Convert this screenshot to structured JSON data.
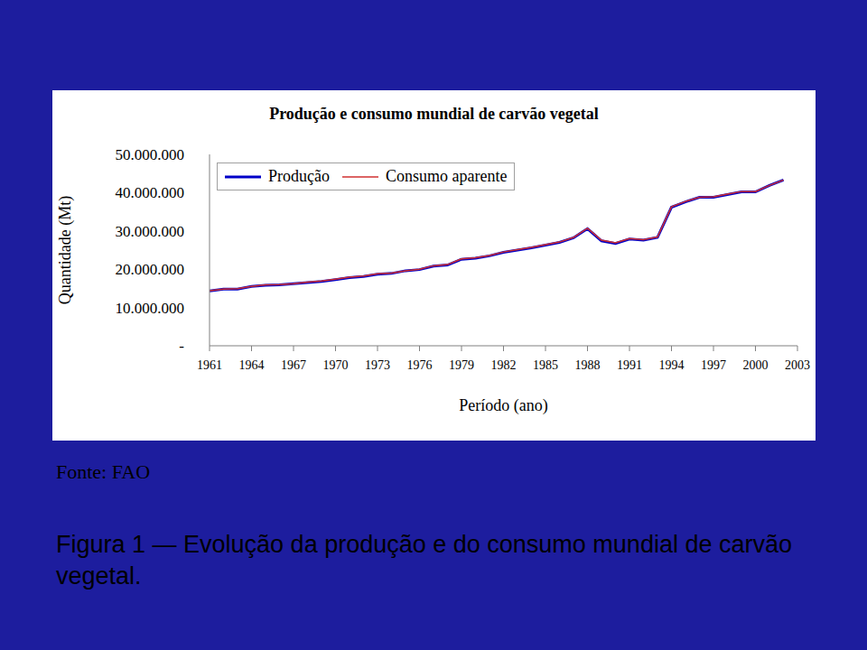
{
  "chart_data": {
    "type": "line",
    "title": "Produção e consumo mundial de carvão vegetal",
    "x_label": "Período (ano)",
    "y_label": "Quantidade (Mt)",
    "source": "Fonte: FAO",
    "caption": "Figura 1 — Evolução da produção e do consumo mundial de carvão vegetal.",
    "x": [
      1961,
      1962,
      1963,
      1964,
      1965,
      1966,
      1967,
      1968,
      1969,
      1970,
      1971,
      1972,
      1973,
      1974,
      1975,
      1976,
      1977,
      1978,
      1979,
      1980,
      1981,
      1982,
      1983,
      1984,
      1985,
      1986,
      1987,
      1988,
      1989,
      1990,
      1991,
      1992,
      1993,
      1994,
      1995,
      1996,
      1997,
      1998,
      1999,
      2000,
      2001,
      2002
    ],
    "series": [
      {
        "name": "Produção",
        "color": "#0000c8",
        "values": [
          14300000,
          14800000,
          14800000,
          15500000,
          15800000,
          15900000,
          16200000,
          16500000,
          16800000,
          17300000,
          17800000,
          18100000,
          18700000,
          18900000,
          19600000,
          19900000,
          20800000,
          21100000,
          22600000,
          22900000,
          23500000,
          24400000,
          25000000,
          25600000,
          26300000,
          27000000,
          28200000,
          30600000,
          27400000,
          26700000,
          27900000,
          27600000,
          28300000,
          36200000,
          37600000,
          38800000,
          38800000,
          39500000,
          40200000,
          40200000,
          41900000,
          43300000
        ]
      },
      {
        "name": "Consumo aparente",
        "color": "#d03030",
        "values": [
          14400000,
          14800000,
          14900000,
          15500000,
          15900000,
          16000000,
          16200000,
          16600000,
          16900000,
          17400000,
          17900000,
          18200000,
          18800000,
          19000000,
          19600000,
          20000000,
          20900000,
          21200000,
          22700000,
          23000000,
          23600000,
          24500000,
          25100000,
          25700000,
          26400000,
          27100000,
          28300000,
          30700000,
          27600000,
          26900000,
          28000000,
          27700000,
          28400000,
          36300000,
          37700000,
          38800000,
          38900000,
          39600000,
          40300000,
          40300000,
          41900000,
          43300000
        ]
      }
    ],
    "xlim": [
      1961,
      2003
    ],
    "xticks": [
      1961,
      1964,
      1967,
      1970,
      1973,
      1976,
      1979,
      1982,
      1985,
      1988,
      1991,
      1994,
      1997,
      2000,
      2003
    ],
    "ylim": [
      0,
      50000000
    ],
    "yticks": [
      {
        "value": 0,
        "label": "-"
      },
      {
        "value": 10000000,
        "label": "10.000.000"
      },
      {
        "value": 20000000,
        "label": "20.000.000"
      },
      {
        "value": 30000000,
        "label": "30.000.000"
      },
      {
        "value": 40000000,
        "label": "40.000.000"
      },
      {
        "value": 50000000,
        "label": "50.000.000"
      }
    ],
    "grid": false,
    "legend": "top-left"
  }
}
